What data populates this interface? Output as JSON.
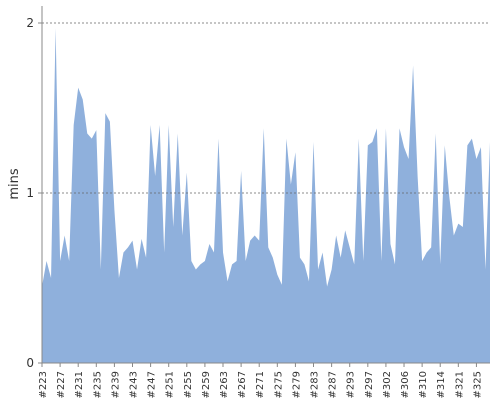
{
  "chart_data": {
    "type": "area",
    "y_label": "mins",
    "color": "#8fb0dc",
    "categories": [
      "#223",
      null,
      null,
      null,
      "#227",
      null,
      null,
      null,
      "#231",
      null,
      null,
      null,
      "#235",
      null,
      null,
      null,
      "#239",
      null,
      null,
      null,
      "#243",
      null,
      null,
      null,
      "#247",
      null,
      null,
      null,
      "#251",
      null,
      null,
      null,
      "#255",
      null,
      null,
      null,
      "#259",
      null,
      null,
      null,
      "#263",
      null,
      null,
      null,
      "#267",
      null,
      null,
      null,
      "#271",
      null,
      null,
      null,
      "#275",
      null,
      null,
      null,
      "#279",
      null,
      null,
      null,
      "#283",
      null,
      null,
      null,
      "#287",
      null,
      null,
      null,
      "#293",
      null,
      null,
      null,
      "#297",
      null,
      null,
      null,
      "#302",
      null,
      null,
      null,
      "#306",
      null,
      null,
      null,
      "#310",
      null,
      null,
      null,
      "#314",
      null,
      null,
      null,
      "#321",
      null,
      null,
      null,
      "#325",
      null,
      null,
      null
    ],
    "values": [
      0.45,
      0.6,
      0.5,
      1.97,
      0.6,
      0.75,
      0.6,
      1.4,
      1.62,
      1.55,
      1.35,
      1.32,
      1.37,
      0.55,
      1.47,
      1.42,
      0.9,
      0.5,
      0.65,
      0.68,
      0.72,
      0.55,
      0.73,
      0.62,
      1.4,
      1.1,
      1.4,
      0.65,
      1.4,
      0.8,
      1.35,
      0.75,
      1.12,
      0.6,
      0.55,
      0.58,
      0.6,
      0.7,
      0.65,
      1.32,
      0.65,
      0.48,
      0.58,
      0.6,
      1.13,
      0.6,
      0.72,
      0.75,
      0.72,
      1.38,
      0.68,
      0.62,
      0.52,
      0.46,
      1.32,
      1.05,
      1.24,
      0.62,
      0.58,
      0.48,
      1.3,
      0.55,
      0.65,
      0.45,
      0.55,
      0.75,
      0.62,
      0.78,
      0.68,
      0.58,
      1.32,
      0.6,
      1.28,
      1.3,
      1.38,
      0.6,
      1.38,
      0.7,
      0.58,
      1.38,
      1.27,
      1.2,
      1.75,
      1.1,
      0.6,
      0.65,
      0.68,
      1.35,
      0.58,
      1.28,
      0.98,
      0.75,
      0.82,
      0.8,
      1.28,
      1.32,
      1.2,
      1.27,
      0.55,
      1.3
    ],
    "ylim": [
      0,
      2.1
    ],
    "yticks": [
      0,
      1,
      2
    ],
    "grid": true
  }
}
